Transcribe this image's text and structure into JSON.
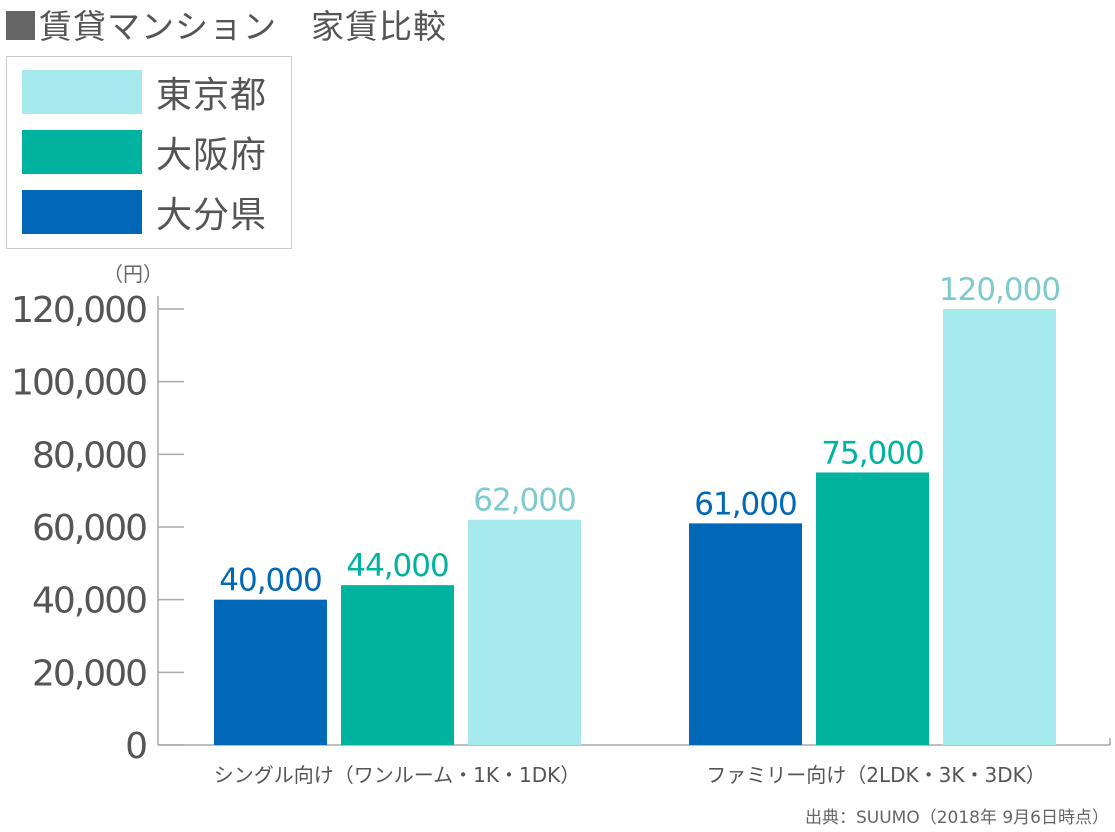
{
  "title": "賃貸マンション　家賃比較",
  "unit": "（円）",
  "source": "出典：SUUMO（2018年 9月6日時点）",
  "chart_data": {
    "type": "bar",
    "categories": [
      "シングル向け（ワンルーム・1K・1DK）",
      "ファミリー向け（2LDK・3K・3DK）"
    ],
    "series": [
      {
        "name": "大分県",
        "color": "#0068b7",
        "values": [
          40000,
          61000
        ]
      },
      {
        "name": "大阪府",
        "color": "#00b39f",
        "values": [
          44000,
          75000
        ]
      },
      {
        "name": "東京都",
        "color": "#a6eaee",
        "values": [
          62000,
          120000
        ]
      }
    ],
    "data_label_colors": [
      "#0068b7",
      "#00b39f",
      "#7ecbcd"
    ],
    "ylim": [
      0,
      120000
    ],
    "yticks": [
      0,
      20000,
      40000,
      60000,
      80000,
      100000,
      120000
    ],
    "ytick_labels": [
      "0",
      "20,000",
      "40,000",
      "60,000",
      "80,000",
      "100,000",
      "120,000"
    ],
    "legend": {
      "position": "top-left",
      "entries": [
        {
          "name": "東京都",
          "color": "#a6eaee"
        },
        {
          "name": "大阪府",
          "color": "#00b39f"
        },
        {
          "name": "大分県",
          "color": "#0068b7"
        }
      ]
    },
    "grid": false
  }
}
